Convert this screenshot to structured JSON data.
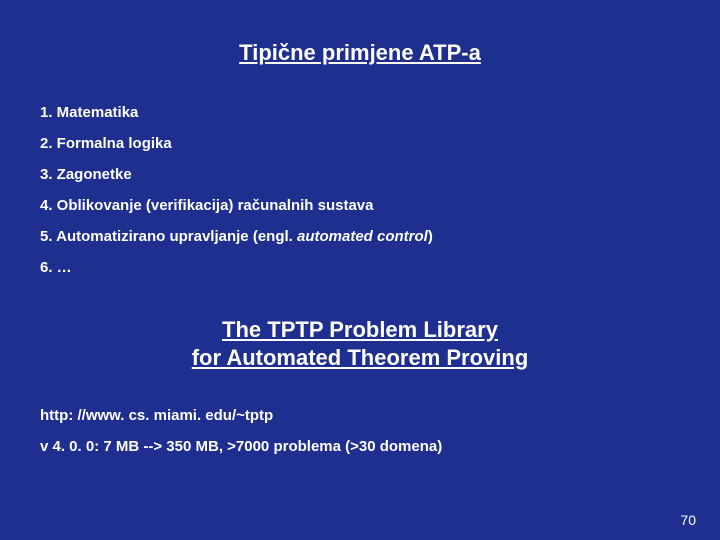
{
  "background_color": "#1f2f8f",
  "text_color": "#ffffff",
  "title": "Tipične primjene ATP-a",
  "title_fontsize": 22,
  "list_fontsize": 15,
  "items": [
    {
      "text": "1. Matematika"
    },
    {
      "text": "2. Formalna logika"
    },
    {
      "text": "3. Zagonetke"
    },
    {
      "text": "4. Oblikovanje (verifikacija) računalnih sustava"
    },
    {
      "text": "5. Automatizirano upravljanje (engl. ",
      "italic_suffix": "automated control",
      "after": ")"
    },
    {
      "text": "6.  …"
    }
  ],
  "subtitle_line1": "The TPTP Problem Library",
  "subtitle_line2": "for Automated Theorem Proving",
  "subtitle_fontsize": 22,
  "url": "http: //www. cs. miami. edu/~tptp",
  "version_line": "v 4. 0. 0: 7 MB   -->    350 MB, >7000 problema (>30 domena)",
  "page_number": "70"
}
